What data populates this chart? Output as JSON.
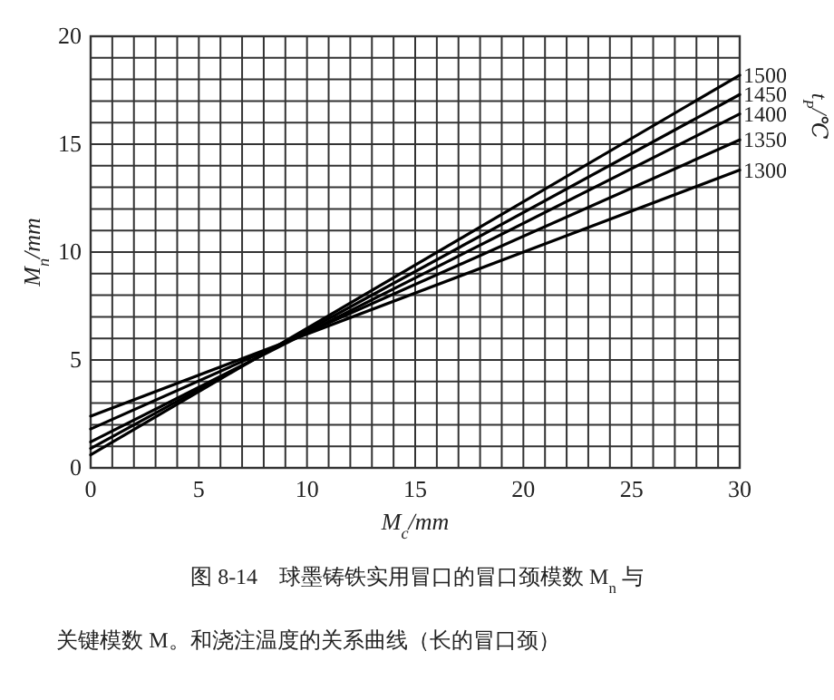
{
  "chart_data": {
    "type": "line",
    "xlabel": "M$_{c}$/mm",
    "ylabel": "M$_{n}$/mm",
    "legend_title": "t$_{P}$/℃",
    "xlim": [
      0,
      30
    ],
    "ylim": [
      0,
      20
    ],
    "xticks": [
      0,
      {
        "value": 1,
        "label": null
      },
      {
        "value": 2,
        "label": null
      },
      {
        "value": 3,
        "label": null
      },
      {
        "value": 4,
        "label": null
      },
      5,
      {
        "value": 6,
        "label": null
      },
      {
        "value": 7,
        "label": null
      },
      {
        "value": 8,
        "label": null
      },
      {
        "value": 9,
        "label": null
      },
      10,
      {
        "value": 11,
        "label": null
      },
      {
        "value": 12,
        "label": null
      },
      {
        "value": 13,
        "label": null
      },
      {
        "value": 14,
        "label": null
      },
      15,
      {
        "value": 16,
        "label": null
      },
      {
        "value": 17,
        "label": null
      },
      {
        "value": 18,
        "label": null
      },
      {
        "value": 19,
        "label": null
      },
      20,
      {
        "value": 21,
        "label": null
      },
      {
        "value": 22,
        "label": null
      },
      {
        "value": 23,
        "label": null
      },
      {
        "value": 24,
        "label": null
      },
      25,
      {
        "value": 26,
        "label": null
      },
      {
        "value": 27,
        "label": null
      },
      {
        "value": 28,
        "label": null
      },
      {
        "value": 29,
        "label": null
      },
      30
    ],
    "yticks": [
      0,
      {
        "value": 1,
        "label": null
      },
      {
        "value": 2,
        "label": null
      },
      {
        "value": 3,
        "label": null
      },
      {
        "value": 4,
        "label": null
      },
      5,
      {
        "value": 6,
        "label": null
      },
      {
        "value": 7,
        "label": null
      },
      {
        "value": 8,
        "label": null
      },
      {
        "value": 9,
        "label": null
      },
      10,
      {
        "value": 11,
        "label": null
      },
      {
        "value": 12,
        "label": null
      },
      {
        "value": 13,
        "label": null
      },
      {
        "value": 14,
        "label": null
      },
      15,
      {
        "value": 16,
        "label": null
      },
      {
        "value": 17,
        "label": null
      },
      {
        "value": 18,
        "label": null
      },
      {
        "value": 19,
        "label": null
      },
      20
    ],
    "grid": true,
    "legend": false,
    "marker": "none",
    "line_style": "solid",
    "x": [
      0,
      30
    ],
    "series": [
      {
        "name": "1500",
        "color": "#000000",
        "values": [
          0.6,
          18.2
        ]
      },
      {
        "name": "1450",
        "color": "#000000",
        "values": [
          0.9,
          17.3
        ]
      },
      {
        "name": "1400",
        "color": "#000000",
        "values": [
          1.2,
          16.4
        ]
      },
      {
        "name": "1350",
        "color": "#000000",
        "values": [
          1.8,
          15.2
        ]
      },
      {
        "name": "1300",
        "color": "#000000",
        "values": [
          2.4,
          13.8
        ]
      }
    ],
    "annotations": [
      "图 8-14　球墨铸铁实用冒口的冒口颈模数 M$_{n}$ 与",
      "关键模数 M。和浇注温度的关系曲线（长的冒口颈）"
    ]
  }
}
